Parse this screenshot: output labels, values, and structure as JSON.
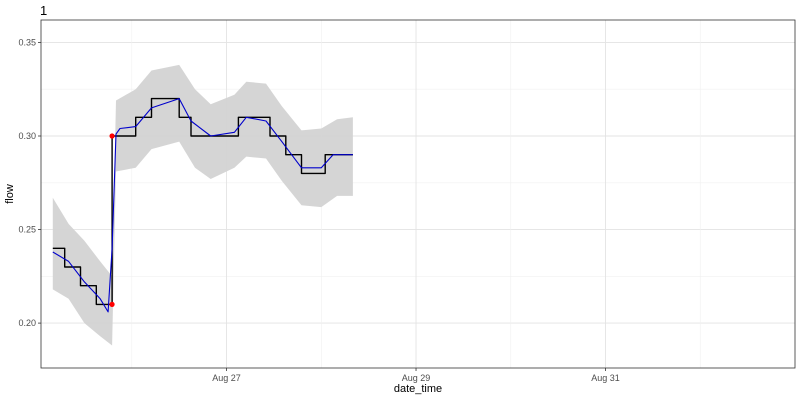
{
  "chart_data": {
    "type": "line",
    "title": "1",
    "xlabel": "date_time",
    "ylabel": "flow",
    "xlim": [
      "2024-08-25T01:00",
      "2024-09-02T00:00"
    ],
    "ylim": [
      0.176,
      0.362
    ],
    "x_ticks": [
      {
        "date": "2024-08-27T00:00",
        "label": "Aug 27"
      },
      {
        "date": "2024-08-29T00:00",
        "label": "Aug 29"
      },
      {
        "date": "2024-08-31T00:00",
        "label": "Aug 31"
      }
    ],
    "y_ticks": [
      {
        "value": 0.2,
        "label": "0.20"
      },
      {
        "value": 0.25,
        "label": "0.25"
      },
      {
        "value": 0.3,
        "label": "0.30"
      },
      {
        "value": 0.35,
        "label": "0.35"
      }
    ],
    "grid": true,
    "series": [
      {
        "kind": "observed",
        "color": "#000000",
        "points": [
          [
            "2024-08-25T04:00",
            0.24
          ],
          [
            "2024-08-25T07:00",
            0.24
          ],
          [
            "2024-08-25T07:00",
            0.23
          ],
          [
            "2024-08-25T11:00",
            0.23
          ],
          [
            "2024-08-25T11:00",
            0.22
          ],
          [
            "2024-08-25T15:00",
            0.22
          ],
          [
            "2024-08-25T15:00",
            0.21
          ],
          [
            "2024-08-25T19:00",
            0.21
          ],
          [
            "2024-08-25T19:00",
            0.3
          ],
          [
            "2024-08-26T01:00",
            0.3
          ],
          [
            "2024-08-26T01:00",
            0.31
          ],
          [
            "2024-08-26T05:00",
            0.31
          ],
          [
            "2024-08-26T05:00",
            0.32
          ],
          [
            "2024-08-26T12:00",
            0.32
          ],
          [
            "2024-08-26T12:00",
            0.31
          ],
          [
            "2024-08-26T15:00",
            0.31
          ],
          [
            "2024-08-26T15:00",
            0.3
          ],
          [
            "2024-08-27T03:00",
            0.3
          ],
          [
            "2024-08-27T03:00",
            0.31
          ],
          [
            "2024-08-27T11:00",
            0.31
          ],
          [
            "2024-08-27T11:00",
            0.3
          ],
          [
            "2024-08-27T15:00",
            0.3
          ],
          [
            "2024-08-27T15:00",
            0.29
          ],
          [
            "2024-08-27T19:00",
            0.29
          ],
          [
            "2024-08-27T19:00",
            0.28
          ],
          [
            "2024-08-28T01:00",
            0.28
          ],
          [
            "2024-08-28T01:00",
            0.29
          ],
          [
            "2024-08-28T08:00",
            0.29
          ]
        ]
      },
      {
        "kind": "fitted",
        "color": "#0000cc",
        "points": [
          [
            "2024-08-25T04:00",
            0.238
          ],
          [
            "2024-08-25T08:00",
            0.233
          ],
          [
            "2024-08-25T12:00",
            0.222
          ],
          [
            "2024-08-25T16:00",
            0.213
          ],
          [
            "2024-08-25T18:00",
            0.206
          ],
          [
            "2024-08-25T19:00",
            0.24
          ],
          [
            "2024-08-25T20:00",
            0.301
          ],
          [
            "2024-08-25T21:00",
            0.304
          ],
          [
            "2024-08-26T01:00",
            0.305
          ],
          [
            "2024-08-26T05:00",
            0.315
          ],
          [
            "2024-08-26T12:00",
            0.32
          ],
          [
            "2024-08-26T15:00",
            0.308
          ],
          [
            "2024-08-26T20:00",
            0.3
          ],
          [
            "2024-08-27T02:00",
            0.302
          ],
          [
            "2024-08-27T05:00",
            0.31
          ],
          [
            "2024-08-27T10:00",
            0.308
          ],
          [
            "2024-08-27T14:00",
            0.297
          ],
          [
            "2024-08-27T19:00",
            0.283
          ],
          [
            "2024-08-28T00:00",
            0.283
          ],
          [
            "2024-08-28T03:00",
            0.29
          ],
          [
            "2024-08-28T08:00",
            0.29
          ]
        ]
      }
    ],
    "band": {
      "color": "#d3d3d3",
      "points": [
        [
          "2024-08-25T04:00",
          0.218,
          0.267
        ],
        [
          "2024-08-25T08:00",
          0.213,
          0.253
        ],
        [
          "2024-08-25T12:00",
          0.2,
          0.244
        ],
        [
          "2024-08-25T16:00",
          0.193,
          0.233
        ],
        [
          "2024-08-25T19:00",
          0.188,
          0.225
        ],
        [
          "2024-08-25T20:00",
          0.281,
          0.319
        ],
        [
          "2024-08-26T01:00",
          0.283,
          0.325
        ],
        [
          "2024-08-26T05:00",
          0.293,
          0.335
        ],
        [
          "2024-08-26T12:00",
          0.297,
          0.338
        ],
        [
          "2024-08-26T16:00",
          0.283,
          0.325
        ],
        [
          "2024-08-26T20:00",
          0.277,
          0.317
        ],
        [
          "2024-08-27T02:00",
          0.283,
          0.322
        ],
        [
          "2024-08-27T05:00",
          0.289,
          0.329
        ],
        [
          "2024-08-27T10:00",
          0.288,
          0.328
        ],
        [
          "2024-08-27T14:00",
          0.276,
          0.316
        ],
        [
          "2024-08-27T19:00",
          0.263,
          0.303
        ],
        [
          "2024-08-28T00:00",
          0.262,
          0.304
        ],
        [
          "2024-08-28T04:00",
          0.268,
          0.309
        ],
        [
          "2024-08-28T08:00",
          0.268,
          0.31
        ]
      ]
    },
    "change_points": {
      "color": "#ff0000",
      "points": [
        [
          "2024-08-25T19:00",
          0.21
        ],
        [
          "2024-08-25T19:00",
          0.3
        ]
      ]
    }
  }
}
